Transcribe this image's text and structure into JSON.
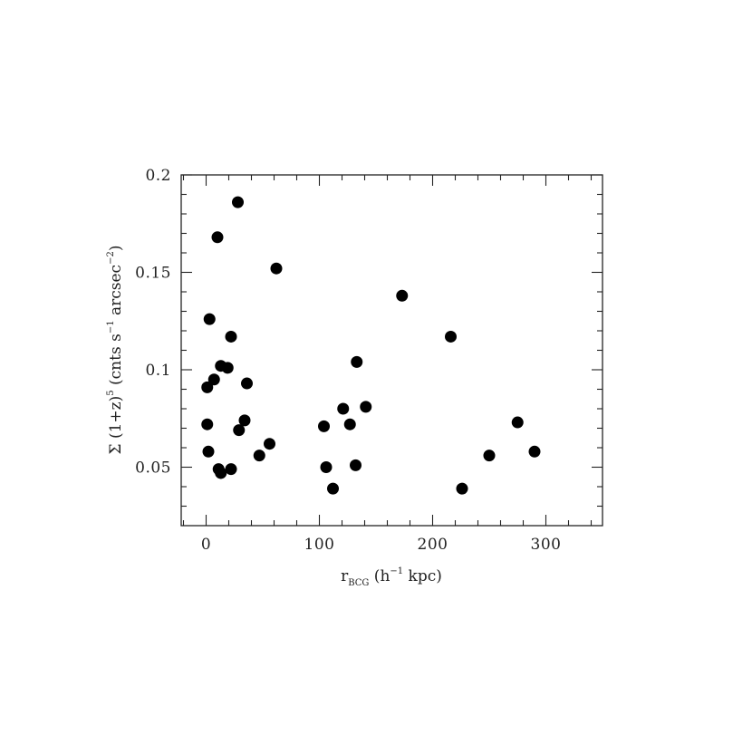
{
  "chart_data": {
    "type": "scatter",
    "title": "",
    "xlabel": {
      "base": "r",
      "sub": "BCG",
      "rest": " (h",
      "sup": "−1",
      "tail": " kpc)"
    },
    "ylabel": {
      "p1": "Σ (1+z)",
      "sup1": "5",
      "p2": " (cnts s",
      "sup2": "−1",
      "p3": " arcsec",
      "sup3": "−2",
      "p4": ")"
    },
    "xlim": [
      -22,
      350
    ],
    "ylim": [
      0.02,
      0.2
    ],
    "xticks": [
      0,
      100,
      200,
      300
    ],
    "xtick_labels": [
      "0",
      "100",
      "200",
      "300"
    ],
    "yticks": [
      0.05,
      0.1,
      0.15,
      0.2
    ],
    "ytick_labels": [
      "0.05",
      "0.1",
      "0.15",
      "0.2"
    ],
    "grid": false,
    "marker_color": "#000000",
    "points": [
      {
        "x": 28,
        "y": 0.186
      },
      {
        "x": 10,
        "y": 0.168
      },
      {
        "x": 62,
        "y": 0.152
      },
      {
        "x": 3,
        "y": 0.126
      },
      {
        "x": 22,
        "y": 0.117
      },
      {
        "x": 173,
        "y": 0.138
      },
      {
        "x": 216,
        "y": 0.117
      },
      {
        "x": 133,
        "y": 0.104
      },
      {
        "x": 13,
        "y": 0.102
      },
      {
        "x": 19,
        "y": 0.101
      },
      {
        "x": 7,
        "y": 0.095
      },
      {
        "x": 1,
        "y": 0.091
      },
      {
        "x": 36,
        "y": 0.093
      },
      {
        "x": 141,
        "y": 0.081
      },
      {
        "x": 121,
        "y": 0.08
      },
      {
        "x": 34,
        "y": 0.074
      },
      {
        "x": 1,
        "y": 0.072
      },
      {
        "x": 127,
        "y": 0.072
      },
      {
        "x": 104,
        "y": 0.071
      },
      {
        "x": 29,
        "y": 0.069
      },
      {
        "x": 275,
        "y": 0.073
      },
      {
        "x": 56,
        "y": 0.062
      },
      {
        "x": 2,
        "y": 0.058
      },
      {
        "x": 47,
        "y": 0.056
      },
      {
        "x": 250,
        "y": 0.056
      },
      {
        "x": 290,
        "y": 0.058
      },
      {
        "x": 106,
        "y": 0.05
      },
      {
        "x": 132,
        "y": 0.051
      },
      {
        "x": 11,
        "y": 0.049
      },
      {
        "x": 22,
        "y": 0.049
      },
      {
        "x": 13,
        "y": 0.047
      },
      {
        "x": 112,
        "y": 0.039
      },
      {
        "x": 226,
        "y": 0.039
      }
    ]
  }
}
